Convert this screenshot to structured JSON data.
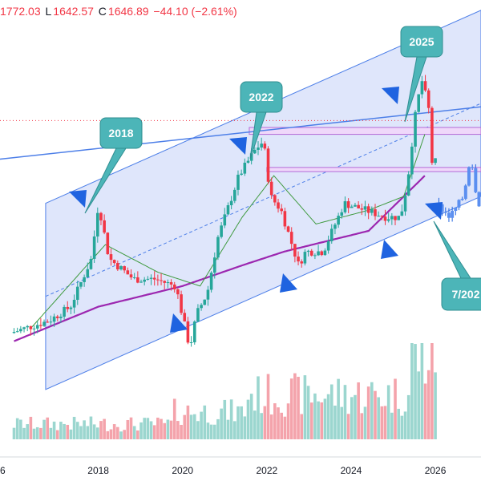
{
  "ohlc": {
    "open_value": "1772.03",
    "low_label": "L",
    "low_value": "1642.57",
    "close_label": "C",
    "close_value": "1646.89",
    "change": "−44.10 (−2.61%)"
  },
  "colors": {
    "up": "#26a69a",
    "down": "#f23645",
    "channel_fill": "#dfe6fb",
    "channel_line": "#4d7fe8",
    "ma_slow": "#9c27b0",
    "ma_fast": "#3f9a3f",
    "callout_fill": "#4cb5b8",
    "arrow": "#1f63e0",
    "zone_stroke": "#b36ad6",
    "zone_fill": "#efd8fa",
    "volume_up": "#9bd6cf",
    "volume_down": "#f4a3ab"
  },
  "annotations": {
    "callouts": [
      {
        "label": "2018"
      },
      {
        "label": "2022"
      },
      {
        "label": "2025"
      },
      {
        "label": "7/202"
      }
    ],
    "arrow_count": 7
  },
  "chart_data": {
    "type": "candlestick",
    "title": "",
    "x_axis": {
      "type": "time",
      "range": [
        "2015-09",
        "2027-02"
      ],
      "tick_labels": [
        "6",
        "2018",
        "2020",
        "2022",
        "2024",
        "2026"
      ]
    },
    "y_axis": {
      "range": [
        500,
        3000
      ],
      "tick_labels": [],
      "scale": "linear"
    },
    "last_bar": {
      "open": 1772.03,
      "low": 1642.57,
      "close": 1646.89,
      "change": -44.1,
      "change_pct": -2.61
    },
    "current_price_line": 2300,
    "price_points": [
      {
        "date": "2016-01",
        "price": 760
      },
      {
        "date": "2016-12",
        "price": 850
      },
      {
        "date": "2017-06",
        "price": 950
      },
      {
        "date": "2017-12",
        "price": 1300
      },
      {
        "date": "2018-02",
        "price": 1700
      },
      {
        "date": "2018-05",
        "price": 1300
      },
      {
        "date": "2018-12",
        "price": 1150
      },
      {
        "date": "2019-06",
        "price": 1150
      },
      {
        "date": "2019-12",
        "price": 1100
      },
      {
        "date": "2020-04",
        "price": 650
      },
      {
        "date": "2020-06",
        "price": 900
      },
      {
        "date": "2020-09",
        "price": 1050
      },
      {
        "date": "2020-12",
        "price": 1450
      },
      {
        "date": "2021-06",
        "price": 1900
      },
      {
        "date": "2021-11",
        "price": 2100
      },
      {
        "date": "2022-01",
        "price": 2150
      },
      {
        "date": "2022-03",
        "price": 1750
      },
      {
        "date": "2022-06",
        "price": 1650
      },
      {
        "date": "2022-11",
        "price": 1250
      },
      {
        "date": "2023-01",
        "price": 1350
      },
      {
        "date": "2023-06",
        "price": 1350
      },
      {
        "date": "2023-12",
        "price": 1700
      },
      {
        "date": "2024-06",
        "price": 1650
      },
      {
        "date": "2024-12",
        "price": 1600
      },
      {
        "date": "2025-04",
        "price": 1600
      },
      {
        "date": "2025-06",
        "price": 1850
      },
      {
        "date": "2025-08",
        "price": 2300
      },
      {
        "date": "2025-10",
        "price": 2600
      },
      {
        "date": "2025-12",
        "price": 2400
      },
      {
        "date": "2026-01",
        "price": 2000
      }
    ],
    "projection_points": [
      {
        "date": "2026-02",
        "price": 1700
      },
      {
        "date": "2026-06",
        "price": 1600
      },
      {
        "date": "2026-10",
        "price": 1750
      },
      {
        "date": "2026-12",
        "price": 2050
      },
      {
        "date": "2027-02",
        "price": 1700
      }
    ],
    "ma_slow_points": [
      {
        "date": "2016-01",
        "price": 700
      },
      {
        "date": "2018-01",
        "price": 950
      },
      {
        "date": "2020-01",
        "price": 1100
      },
      {
        "date": "2021-06",
        "price": 1250
      },
      {
        "date": "2022-06",
        "price": 1350
      },
      {
        "date": "2024-06",
        "price": 1500
      },
      {
        "date": "2025-10",
        "price": 1900
      }
    ],
    "ma_fast_points": [
      {
        "date": "2016-06",
        "price": 800
      },
      {
        "date": "2018-03",
        "price": 1400
      },
      {
        "date": "2019-06",
        "price": 1200
      },
      {
        "date": "2020-06",
        "price": 1100
      },
      {
        "date": "2021-06",
        "price": 1600
      },
      {
        "date": "2022-03",
        "price": 1900
      },
      {
        "date": "2023-03",
        "price": 1550
      },
      {
        "date": "2024-06",
        "price": 1650
      },
      {
        "date": "2025-04",
        "price": 1750
      },
      {
        "date": "2025-10",
        "price": 2200
      }
    ],
    "channel": {
      "start": "2016-10",
      "end": "2027-02",
      "upper": [
        1700,
        3100
      ],
      "lower": [
        350,
        1750
      ]
    },
    "trendline": {
      "from": {
        "date": "2015-09",
        "price": 2020
      },
      "to": {
        "date": "2027-02",
        "price": 2400
      }
    },
    "resistance_zones": [
      {
        "from": "2021-08",
        "to": "2027-02",
        "top": 2250,
        "bottom": 2200
      },
      {
        "from": "2022-01",
        "to": "2027-02",
        "top": 1960,
        "bottom": 1930
      }
    ],
    "volume": {
      "max": 100
    }
  }
}
